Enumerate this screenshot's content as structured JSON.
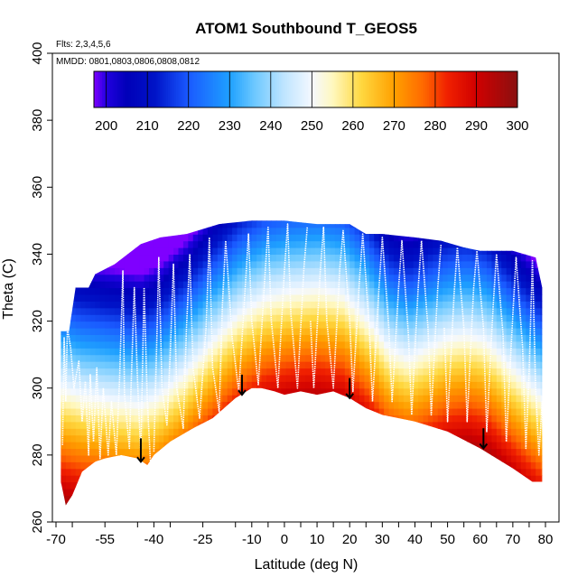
{
  "chart_data": {
    "type": "heatmap",
    "title": "ATOM1 Southbound T_GEOS5",
    "flights_note": "Flts: 2,3,4,5,6",
    "dates_note": "MMDD: 0801,0803,0806,0808,0812",
    "xlabel": "Latitude (deg N)",
    "ylabel": "Theta (C)",
    "xlim": [
      -70,
      80
    ],
    "ylim": [
      260,
      400
    ],
    "x_ticks": [
      "-70",
      "-55",
      "-40",
      "-25",
      "-10",
      "0",
      "10",
      "20",
      "30",
      "40",
      "50",
      "60",
      "70",
      "80"
    ],
    "x_tick_values": [
      -70,
      -55,
      -40,
      -25,
      -10,
      0,
      10,
      20,
      30,
      40,
      50,
      60,
      70,
      80
    ],
    "y_ticks": [
      "260",
      "280",
      "300",
      "320",
      "340",
      "360",
      "380",
      "400"
    ],
    "y_tick_values": [
      260,
      280,
      300,
      320,
      340,
      360,
      380,
      400
    ],
    "colorbar": {
      "range": [
        197,
        300
      ],
      "labels": [
        "200",
        "210",
        "220",
        "230",
        "240",
        "250",
        "260",
        "270",
        "280",
        "290",
        "300"
      ],
      "label_values": [
        200,
        210,
        220,
        230,
        240,
        250,
        260,
        270,
        280,
        290,
        300
      ],
      "stops": [
        {
          "value": 197,
          "color": "#7f00ff"
        },
        {
          "value": 200,
          "color": "#2200e0"
        },
        {
          "value": 205,
          "color": "#0000b8"
        },
        {
          "value": 212,
          "color": "#0014c8"
        },
        {
          "value": 220,
          "color": "#1a5aff"
        },
        {
          "value": 230,
          "color": "#1ea0ff"
        },
        {
          "value": 236,
          "color": "#6cc8ff"
        },
        {
          "value": 243,
          "color": "#bde4ff"
        },
        {
          "value": 250,
          "color": "#f4f8ff"
        },
        {
          "value": 255,
          "color": "#fff8c0"
        },
        {
          "value": 262,
          "color": "#ffd840"
        },
        {
          "value": 270,
          "color": "#ffa000"
        },
        {
          "value": 277,
          "color": "#ff6a00"
        },
        {
          "value": 283,
          "color": "#f02000"
        },
        {
          "value": 290,
          "color": "#d00000"
        },
        {
          "value": 300,
          "color": "#8a1010"
        }
      ]
    },
    "top_boundary": [
      [
        -68.5,
        317
      ],
      [
        -66,
        317
      ],
      [
        -64,
        330
      ],
      [
        -60,
        330
      ],
      [
        -58,
        334
      ],
      [
        -52,
        337
      ],
      [
        -48,
        340
      ],
      [
        -44,
        343
      ],
      [
        -38,
        345
      ],
      [
        -30,
        346
      ],
      [
        -20,
        349
      ],
      [
        -10,
        350
      ],
      [
        0,
        350
      ],
      [
        10,
        349
      ],
      [
        20,
        349
      ],
      [
        25,
        346
      ],
      [
        30,
        346
      ],
      [
        40,
        345
      ],
      [
        48,
        344
      ],
      [
        55,
        342
      ],
      [
        60,
        341
      ],
      [
        70,
        341
      ],
      [
        77,
        339
      ],
      [
        79,
        330
      ]
    ],
    "bottom_boundary": [
      [
        -68.5,
        272
      ],
      [
        -67,
        265
      ],
      [
        -65,
        268
      ],
      [
        -62,
        275
      ],
      [
        -58,
        278
      ],
      [
        -55,
        279
      ],
      [
        -50,
        280
      ],
      [
        -45,
        279
      ],
      [
        -42,
        277
      ],
      [
        -40,
        280
      ],
      [
        -35,
        284
      ],
      [
        -28,
        288
      ],
      [
        -22,
        291
      ],
      [
        -15,
        297
      ],
      [
        -10,
        300
      ],
      [
        -7,
        300
      ],
      [
        -3,
        299
      ],
      [
        0,
        298
      ],
      [
        5,
        299
      ],
      [
        10,
        298
      ],
      [
        15,
        299
      ],
      [
        20,
        297
      ],
      [
        25,
        294
      ],
      [
        30,
        292
      ],
      [
        40,
        290
      ],
      [
        50,
        287
      ],
      [
        60,
        282
      ],
      [
        70,
        276
      ],
      [
        76,
        272
      ],
      [
        79,
        272
      ],
      [
        79,
        300
      ]
    ],
    "isotherm_profile": [
      [
        -68,
        300
      ],
      [
        -62,
        298
      ],
      [
        -56,
        297
      ],
      [
        -50,
        296
      ],
      [
        -44,
        295
      ],
      [
        -38,
        298
      ],
      [
        -30,
        305
      ],
      [
        -22,
        314
      ],
      [
        -14,
        322
      ],
      [
        -6,
        327
      ],
      [
        2,
        329
      ],
      [
        10,
        330
      ],
      [
        18,
        328
      ],
      [
        26,
        320
      ],
      [
        32,
        312
      ],
      [
        38,
        309
      ],
      [
        44,
        312
      ],
      [
        50,
        315
      ],
      [
        56,
        316
      ],
      [
        62,
        314
      ],
      [
        70,
        306
      ],
      [
        76,
        300
      ],
      [
        80,
        296
      ]
    ],
    "flight_traces": [
      [
        [
          -68,
          283
        ],
        [
          -67.5,
          315
        ],
        [
          -67,
          296
        ],
        [
          -66.5,
          318
        ],
        [
          -65.5,
          312
        ],
        [
          -64.5,
          300
        ],
        [
          -63,
          308
        ],
        [
          -62,
          290
        ],
        [
          -61,
          302
        ],
        [
          -60,
          280
        ],
        [
          -59.5,
          304
        ],
        [
          -58.5,
          284
        ],
        [
          -57.5,
          306
        ],
        [
          -56.5,
          279
        ],
        [
          -55.5,
          300
        ],
        [
          -54,
          280
        ],
        [
          -53,
          296
        ],
        [
          -51.5,
          280
        ],
        [
          -50.5,
          303
        ],
        [
          -49.5,
          335
        ],
        [
          -49,
          298
        ],
        [
          -47.5,
          282
        ],
        [
          -47,
          300
        ],
        [
          -46,
          330
        ],
        [
          -45,
          302
        ],
        [
          -44,
          280
        ],
        [
          -43,
          330
        ],
        [
          -42,
          296
        ],
        [
          -41,
          277
        ]
      ],
      [
        [
          -40,
          281
        ],
        [
          -39,
          318
        ],
        [
          -38.5,
          339
        ],
        [
          -37.5,
          300
        ],
        [
          -36,
          289
        ],
        [
          -35,
          310
        ],
        [
          -34,
          337
        ],
        [
          -33,
          300
        ],
        [
          -31,
          288
        ],
        [
          -30,
          318
        ],
        [
          -29,
          340
        ],
        [
          -28,
          306
        ],
        [
          -26,
          291
        ],
        [
          -24,
          318
        ],
        [
          -23,
          345
        ],
        [
          -22,
          306
        ],
        [
          -20,
          293
        ],
        [
          -19,
          325
        ],
        [
          -18,
          344
        ],
        [
          -16,
          315
        ],
        [
          -14,
          299
        ],
        [
          -12,
          330
        ],
        [
          -11,
          346
        ],
        [
          -10,
          320
        ],
        [
          -8,
          301
        ],
        [
          -6,
          333
        ],
        [
          -5,
          348
        ],
        [
          -4,
          320
        ],
        [
          -2,
          300
        ],
        [
          0,
          335
        ],
        [
          1,
          349
        ],
        [
          2,
          322
        ],
        [
          4,
          300
        ],
        [
          6,
          336
        ],
        [
          7,
          348
        ]
      ],
      [
        [
          8,
          320
        ],
        [
          9,
          300
        ],
        [
          11,
          335
        ],
        [
          12,
          348
        ],
        [
          13,
          320
        ],
        [
          15,
          300
        ],
        [
          17,
          336
        ],
        [
          18,
          347
        ],
        [
          20,
          320
        ],
        [
          21,
          299
        ],
        [
          23,
          332
        ],
        [
          24,
          346
        ],
        [
          26,
          318
        ],
        [
          27,
          296
        ],
        [
          29,
          330
        ],
        [
          30,
          345
        ],
        [
          32,
          318
        ],
        [
          33,
          296
        ],
        [
          35,
          330
        ],
        [
          36,
          344
        ],
        [
          38,
          316
        ],
        [
          39,
          292
        ],
        [
          41,
          330
        ],
        [
          42,
          344
        ],
        [
          44,
          318
        ],
        [
          45,
          292
        ],
        [
          47,
          330
        ],
        [
          48,
          343
        ]
      ],
      [
        [
          49,
          318
        ],
        [
          50,
          290
        ],
        [
          52,
          328
        ],
        [
          53,
          342
        ],
        [
          55,
          318
        ],
        [
          56,
          290
        ],
        [
          58,
          330
        ],
        [
          59,
          341
        ],
        [
          61,
          318
        ],
        [
          62,
          287
        ],
        [
          64,
          325
        ],
        [
          65,
          340
        ],
        [
          67,
          316
        ],
        [
          68,
          284
        ],
        [
          70,
          322
        ],
        [
          71,
          339
        ],
        [
          73,
          312
        ],
        [
          74,
          282
        ],
        [
          75,
          305
        ],
        [
          76,
          338
        ],
        [
          77,
          300
        ],
        [
          78,
          280
        ],
        [
          79,
          296
        ],
        [
          79.5,
          274
        ]
      ]
    ],
    "arrows": [
      {
        "x": -44,
        "y_from": 285,
        "y_to": 278
      },
      {
        "x": -13,
        "y_from": 304,
        "y_to": 298
      },
      {
        "x": 20,
        "y_from": 303,
        "y_to": 297
      },
      {
        "x": 61,
        "y_from": 288,
        "y_to": 282
      }
    ]
  }
}
